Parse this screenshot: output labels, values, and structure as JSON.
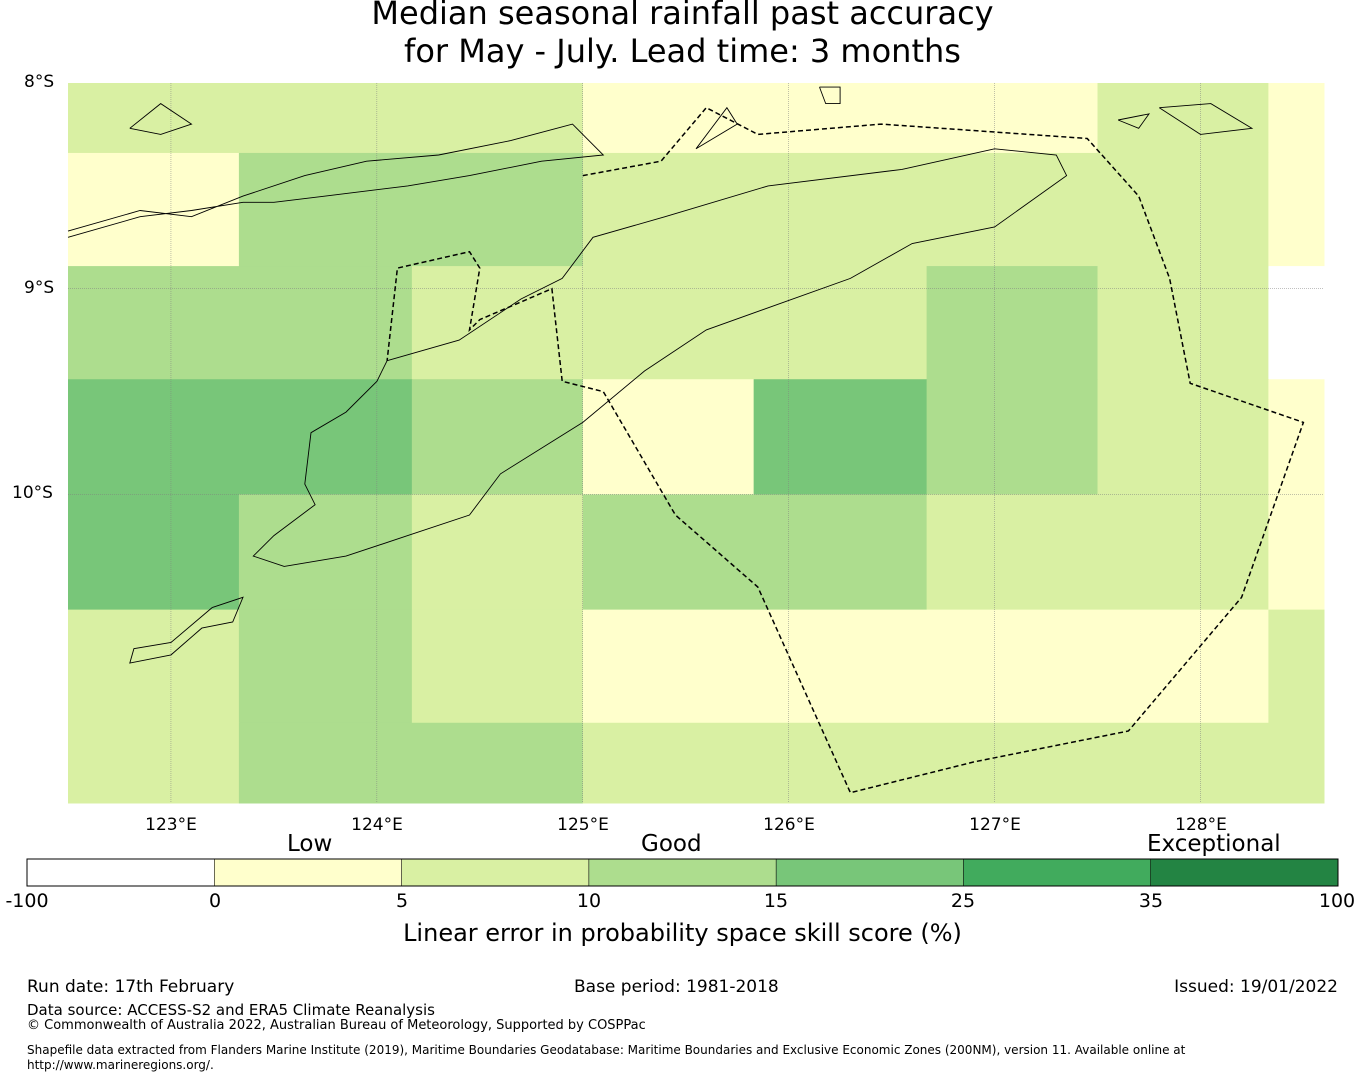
{
  "title": {
    "line1": "Median seasonal rainfall past accuracy",
    "line2": "for May - July. Lead time: 3 months"
  },
  "map": {
    "lat_labels": [
      "8°S",
      "9°S",
      "10°S"
    ],
    "lon_labels": [
      "123°E",
      "124°E",
      "125°E",
      "126°E",
      "127°E",
      "128°E"
    ],
    "lat_range": [
      -8.0,
      -11.5
    ],
    "lon_range": [
      122.5,
      128.6
    ],
    "cell_rows": [
      {
        "lat_top": -8.0,
        "lat_bottom": -8.34,
        "cells": [
          {
            "lon0": 122.5,
            "lon1": 125.0,
            "cls": 2
          },
          {
            "lon0": 125.0,
            "lon1": 127.5,
            "cls": 1
          },
          {
            "lon0": 127.5,
            "lon1": 128.33,
            "cls": 2
          },
          {
            "lon0": 128.33,
            "lon1": 128.6,
            "cls": 1
          }
        ]
      },
      {
        "lat_top": -8.34,
        "lat_bottom": -8.89,
        "cells": [
          {
            "lon0": 122.5,
            "lon1": 123.33,
            "cls": 1
          },
          {
            "lon0": 123.33,
            "lon1": 125.0,
            "cls": 3
          },
          {
            "lon0": 125.0,
            "lon1": 128.33,
            "cls": 2
          },
          {
            "lon0": 128.33,
            "lon1": 128.6,
            "cls": 1
          }
        ]
      },
      {
        "lat_top": -8.89,
        "lat_bottom": -9.44,
        "cells": [
          {
            "lon0": 122.5,
            "lon1": 124.17,
            "cls": 3
          },
          {
            "lon0": 124.17,
            "lon1": 126.67,
            "cls": 2
          },
          {
            "lon0": 126.67,
            "lon1": 127.5,
            "cls": 3
          },
          {
            "lon0": 127.5,
            "lon1": 128.33,
            "cls": 2
          },
          {
            "lon0": 128.33,
            "lon1": 128.6,
            "cls": 0
          }
        ]
      },
      {
        "lat_top": -9.44,
        "lat_bottom": -10.0,
        "cells": [
          {
            "lon0": 122.5,
            "lon1": 124.17,
            "cls": 4
          },
          {
            "lon0": 124.17,
            "lon1": 125.0,
            "cls": 3
          },
          {
            "lon0": 125.0,
            "lon1": 125.83,
            "cls": 1
          },
          {
            "lon0": 125.83,
            "lon1": 126.67,
            "cls": 4
          },
          {
            "lon0": 126.67,
            "lon1": 127.5,
            "cls": 3
          },
          {
            "lon0": 127.5,
            "lon1": 128.33,
            "cls": 2
          },
          {
            "lon0": 128.33,
            "lon1": 128.6,
            "cls": 1
          }
        ]
      },
      {
        "lat_top": -10.0,
        "lat_bottom": -10.56,
        "cells": [
          {
            "lon0": 122.5,
            "lon1": 123.33,
            "cls": 4
          },
          {
            "lon0": 123.33,
            "lon1": 124.17,
            "cls": 3
          },
          {
            "lon0": 124.17,
            "lon1": 125.0,
            "cls": 2
          },
          {
            "lon0": 125.0,
            "lon1": 126.67,
            "cls": 3
          },
          {
            "lon0": 126.67,
            "lon1": 128.33,
            "cls": 2
          },
          {
            "lon0": 128.33,
            "lon1": 128.6,
            "cls": 1
          }
        ]
      },
      {
        "lat_top": -10.56,
        "lat_bottom": -11.11,
        "cells": [
          {
            "lon0": 122.5,
            "lon1": 123.33,
            "cls": 2
          },
          {
            "lon0": 123.33,
            "lon1": 124.17,
            "cls": 3
          },
          {
            "lon0": 124.17,
            "lon1": 125.0,
            "cls": 2
          },
          {
            "lon0": 125.0,
            "lon1": 128.33,
            "cls": 1
          },
          {
            "lon0": 128.33,
            "lon1": 128.6,
            "cls": 2
          }
        ]
      },
      {
        "lat_top": -11.11,
        "lat_bottom": -11.5,
        "cells": [
          {
            "lon0": 122.5,
            "lon1": 123.33,
            "cls": 2
          },
          {
            "lon0": 123.33,
            "lon1": 125.0,
            "cls": 3
          },
          {
            "lon0": 125.0,
            "lon1": 128.6,
            "cls": 2
          }
        ]
      }
    ],
    "eez_boundary": [
      [
        125.0,
        -8.45
      ],
      [
        125.38,
        -8.38
      ],
      [
        125.6,
        -8.12
      ],
      [
        125.85,
        -8.25
      ],
      [
        126.45,
        -8.2
      ],
      [
        127.45,
        -8.27
      ],
      [
        127.7,
        -8.55
      ],
      [
        127.85,
        -8.95
      ],
      [
        127.95,
        -9.46
      ],
      [
        128.5,
        -9.65
      ],
      [
        128.2,
        -10.5
      ],
      [
        127.65,
        -11.15
      ],
      [
        126.9,
        -11.3
      ],
      [
        126.3,
        -11.45
      ],
      [
        125.85,
        -10.45
      ],
      [
        125.45,
        -10.1
      ],
      [
        125.1,
        -9.5
      ],
      [
        124.9,
        -9.45
      ],
      [
        124.85,
        -9.0
      ],
      [
        124.5,
        -9.15
      ],
      [
        124.45,
        -9.2
      ],
      [
        124.5,
        -8.9
      ],
      [
        124.45,
        -8.82
      ],
      [
        124.1,
        -8.9
      ],
      [
        124.05,
        -9.35
      ]
    ],
    "coastlines": [
      [
        [
          124.05,
          -9.35
        ],
        [
          124.4,
          -9.25
        ],
        [
          124.7,
          -9.05
        ],
        [
          124.9,
          -8.95
        ],
        [
          125.05,
          -8.75
        ],
        [
          125.4,
          -8.65
        ],
        [
          125.9,
          -8.5
        ],
        [
          126.55,
          -8.42
        ],
        [
          127.0,
          -8.32
        ],
        [
          127.3,
          -8.35
        ],
        [
          127.35,
          -8.45
        ],
        [
          127.0,
          -8.7
        ],
        [
          126.6,
          -8.78
        ],
        [
          126.3,
          -8.95
        ],
        [
          125.6,
          -9.2
        ],
        [
          125.3,
          -9.4
        ],
        [
          125.0,
          -9.65
        ],
        [
          124.6,
          -9.9
        ],
        [
          124.45,
          -10.1
        ],
        [
          124.15,
          -10.2
        ],
        [
          123.85,
          -10.3
        ],
        [
          123.55,
          -10.35
        ],
        [
          123.4,
          -10.3
        ],
        [
          123.5,
          -10.2
        ],
        [
          123.7,
          -10.05
        ],
        [
          123.65,
          -9.95
        ],
        [
          123.68,
          -9.7
        ],
        [
          123.85,
          -9.6
        ],
        [
          124.0,
          -9.45
        ],
        [
          124.05,
          -9.35
        ]
      ],
      [
        [
          122.5,
          -8.72
        ],
        [
          122.85,
          -8.62
        ],
        [
          123.1,
          -8.65
        ],
        [
          123.35,
          -8.55
        ],
        [
          123.65,
          -8.45
        ],
        [
          123.95,
          -8.38
        ],
        [
          124.3,
          -8.35
        ],
        [
          124.65,
          -8.28
        ],
        [
          124.95,
          -8.2
        ],
        [
          125.1,
          -8.35
        ],
        [
          124.8,
          -8.38
        ],
        [
          124.45,
          -8.45
        ],
        [
          124.15,
          -8.5
        ],
        [
          123.75,
          -8.55
        ],
        [
          123.5,
          -8.58
        ],
        [
          123.35,
          -8.58
        ],
        [
          123.1,
          -8.62
        ],
        [
          122.85,
          -8.65
        ],
        [
          122.5,
          -8.75
        ]
      ],
      [
        [
          122.8,
          -8.22
        ],
        [
          122.95,
          -8.1
        ],
        [
          123.1,
          -8.2
        ],
        [
          122.95,
          -8.25
        ],
        [
          122.8,
          -8.22
        ]
      ],
      [
        [
          127.8,
          -8.12
        ],
        [
          128.05,
          -8.1
        ],
        [
          128.25,
          -8.22
        ],
        [
          128.0,
          -8.25
        ],
        [
          127.8,
          -8.12
        ]
      ],
      [
        [
          127.6,
          -8.18
        ],
        [
          127.75,
          -8.15
        ],
        [
          127.7,
          -8.22
        ],
        [
          127.6,
          -8.18
        ]
      ],
      [
        [
          125.55,
          -8.32
        ],
        [
          125.7,
          -8.12
        ],
        [
          125.75,
          -8.2
        ],
        [
          125.55,
          -8.32
        ]
      ],
      [
        [
          123.2,
          -10.55
        ],
        [
          123.35,
          -10.5
        ],
        [
          123.3,
          -10.62
        ],
        [
          123.15,
          -10.65
        ],
        [
          123.0,
          -10.78
        ],
        [
          122.8,
          -10.82
        ],
        [
          122.82,
          -10.75
        ],
        [
          123.0,
          -10.72
        ],
        [
          123.2,
          -10.55
        ]
      ],
      [
        [
          126.15,
          -8.02
        ],
        [
          126.25,
          -8.02
        ],
        [
          126.25,
          -8.1
        ],
        [
          126.18,
          -8.1
        ],
        [
          126.15,
          -8.02
        ]
      ]
    ]
  },
  "colorbar": {
    "category_labels": [
      "Low",
      "Good",
      "Exceptional"
    ],
    "ticks": [
      "-100",
      "0",
      "5",
      "10",
      "15",
      "25",
      "35",
      "100"
    ],
    "colors": [
      "#ffffff",
      "#ffffcc",
      "#d9f0a3",
      "#addd8e",
      "#78c679",
      "#41ab5d",
      "#238443"
    ],
    "caption": "Linear error in probability space skill score (%)"
  },
  "footer": {
    "run_date": "Run date: 17th February",
    "base_period": "Base period: 1981-2018",
    "issued": "Issued: 19/01/2022",
    "data_source": "Data source: ACCESS-S2 and ERA5 Climate Reanalysis",
    "copyright": "© Commonwealth of Australia 2022, Australian Bureau of Meteorology, Supported by COSPPac",
    "shapefile": "Shapefile data extracted from Flanders Marine Institute (2019), Maritime Boundaries Geodatabase: Maritime Boundaries and Exclusive Economic Zones (200NM), version 11. Available online at http://www.marineregions.org/."
  }
}
